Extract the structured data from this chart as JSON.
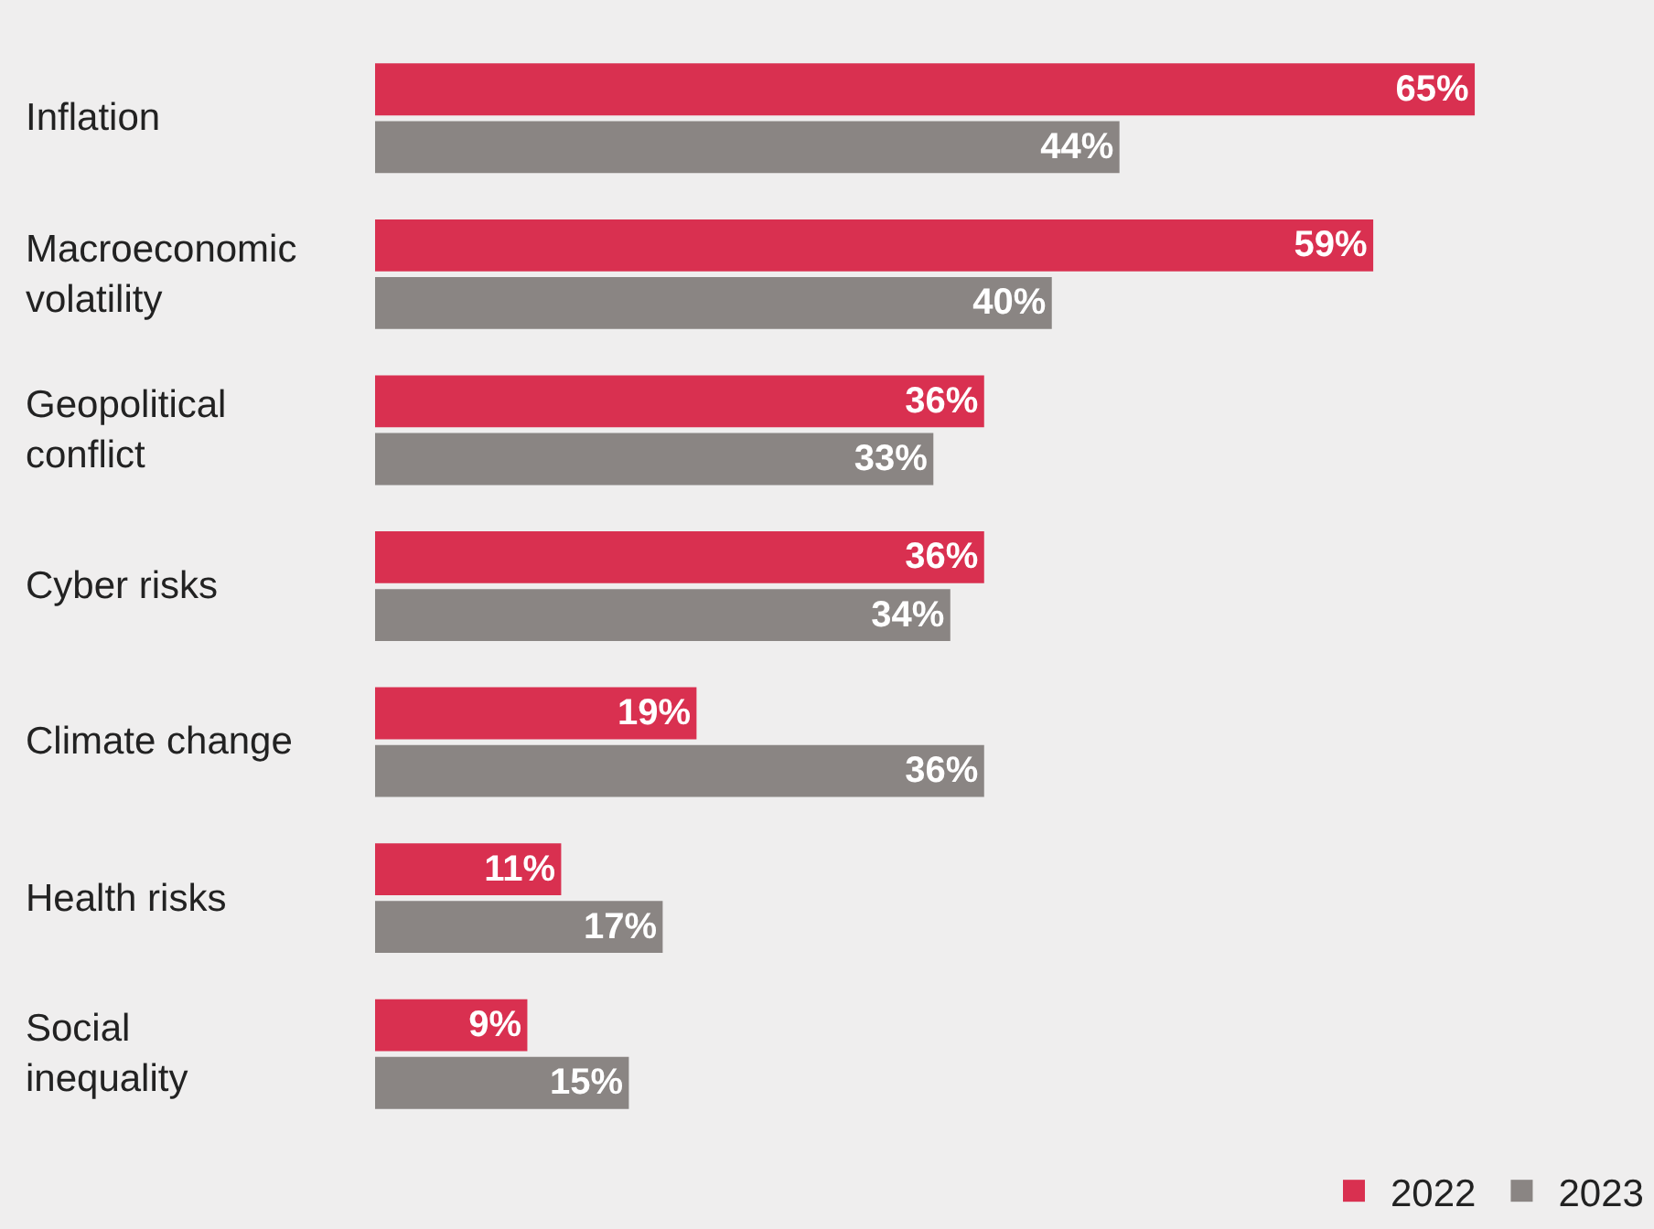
{
  "chart_data": {
    "type": "bar",
    "orientation": "horizontal",
    "categories": [
      "Inflation",
      "Macroeconomic volatility",
      "Geopolitical conflict",
      "Cyber risks",
      "Climate change",
      "Health risks",
      "Social inequality"
    ],
    "series": [
      {
        "name": "2022",
        "color": "#d93050",
        "values": [
          65,
          59,
          36,
          36,
          19,
          11,
          9
        ],
        "value_labels": [
          "65%",
          "59%",
          "36%",
          "36%",
          "19%",
          "11%",
          "9%"
        ]
      },
      {
        "name": "2023",
        "color": "#8a8583",
        "values": [
          44,
          40,
          33,
          34,
          36,
          17,
          15
        ],
        "value_labels": [
          "44%",
          "40%",
          "33%",
          "34%",
          "36%",
          "17%",
          "15%"
        ]
      }
    ],
    "legend": "bottom right",
    "grid": false
  }
}
